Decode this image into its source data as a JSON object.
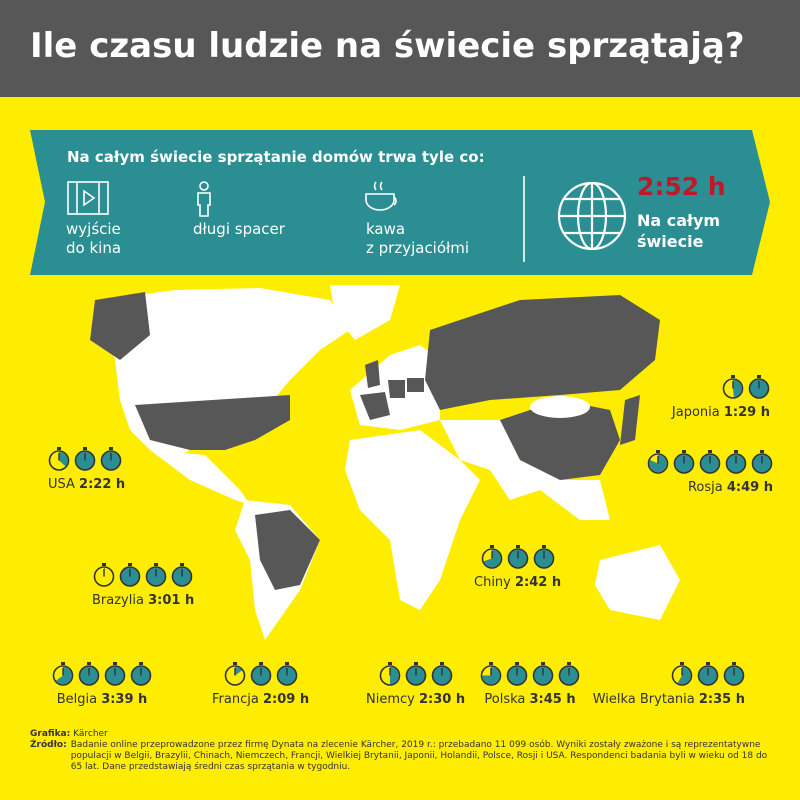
{
  "title": "Ile czasu ludzie na świecie sprzątają?",
  "banner": {
    "heading": "Na całym świecie sprzątanie domów trwa tyle co:",
    "items": [
      "wyjście\ndo kina",
      "długi spacer",
      "kawa\nz przyjaciółmi"
    ]
  },
  "world": {
    "time": "2:52 h",
    "label": "Na całym\nświecie"
  },
  "countries": [
    {
      "name": "USA",
      "time": "2:22 h"
    },
    {
      "name": "Japonia",
      "time": "1:29 h"
    },
    {
      "name": "Rosja",
      "time": "4:49 h"
    },
    {
      "name": "Brazylia",
      "time": "3:01 h"
    },
    {
      "name": "Chiny",
      "time": "2:42 h"
    },
    {
      "name": "Belgia",
      "time": "3:39 h"
    },
    {
      "name": "Francja",
      "time": "2:09 h"
    },
    {
      "name": "Niemcy",
      "time": "2:30 h"
    },
    {
      "name": "Polska",
      "time": "3:45 h"
    },
    {
      "name": "Wielka Brytania",
      "time": "2:35 h"
    }
  ],
  "footer": {
    "graphics_label": "Grafika:",
    "graphics": "Kärcher",
    "source_label": "Źródło:",
    "source": "Badanie online przeprowadzone przez firmę Dynata na zlecenie Kärcher, 2019 r.: przebadano 11 099 osób. Wyniki zostały zważone i są reprezentatywne populacji w Belgii, Brazylii, Chinach, Niemczech, Francji, Wielkiej Brytanii, Japonii, Holandii, Polsce, Rosji i USA. Respondenci badania byli w wieku od 18 do 65 lat. Dane przedstawiają średni czas sprzątania w tygodniu."
  }
}
